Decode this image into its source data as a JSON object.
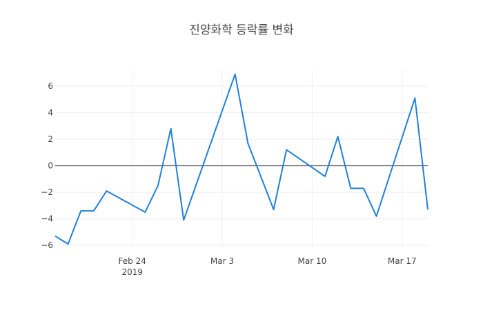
{
  "chart_data": {
    "type": "line",
    "title": "진양화학 등락률 변화",
    "xlabel": "",
    "ylabel": "",
    "x_ticks": [
      {
        "date": "2019-02-24",
        "label": "Feb 24",
        "sublabel": "2019"
      },
      {
        "date": "2019-03-03",
        "label": "Mar 3",
        "sublabel": ""
      },
      {
        "date": "2019-03-10",
        "label": "Mar 10",
        "sublabel": ""
      },
      {
        "date": "2019-03-17",
        "label": "Mar 17",
        "sublabel": ""
      }
    ],
    "y_ticks": [
      {
        "value": -6,
        "label": "−6"
      },
      {
        "value": -4,
        "label": "−4"
      },
      {
        "value": -2,
        "label": "−2"
      },
      {
        "value": 0,
        "label": "0"
      },
      {
        "value": 2,
        "label": "2"
      },
      {
        "value": 4,
        "label": "4"
      },
      {
        "value": 6,
        "label": "6"
      }
    ],
    "xlim": [
      "2019-02-18",
      "2019-03-19"
    ],
    "ylim": [
      -6.2,
      7.3
    ],
    "grid": true,
    "zeroline": true,
    "series": [
      {
        "color": "#1f7fdc",
        "points": [
          {
            "x": "2019-02-18",
            "y": -5.3
          },
          {
            "x": "2019-02-19",
            "y": -5.9
          },
          {
            "x": "2019-02-20",
            "y": -3.4
          },
          {
            "x": "2019-02-21",
            "y": -3.4
          },
          {
            "x": "2019-02-22",
            "y": -1.9
          },
          {
            "x": "2019-02-25",
            "y": -3.5
          },
          {
            "x": "2019-02-26",
            "y": -1.5
          },
          {
            "x": "2019-02-27",
            "y": 2.8
          },
          {
            "x": "2019-02-28",
            "y": -4.1
          },
          {
            "x": "2019-03-04",
            "y": 6.9
          },
          {
            "x": "2019-03-05",
            "y": 1.7
          },
          {
            "x": "2019-03-07",
            "y": -3.3
          },
          {
            "x": "2019-03-08",
            "y": 1.2
          },
          {
            "x": "2019-03-11",
            "y": -0.8
          },
          {
            "x": "2019-03-12",
            "y": 2.2
          },
          {
            "x": "2019-03-13",
            "y": -1.7
          },
          {
            "x": "2019-03-14",
            "y": -1.7
          },
          {
            "x": "2019-03-15",
            "y": -3.8
          },
          {
            "x": "2019-03-18",
            "y": 5.1
          },
          {
            "x": "2019-03-19",
            "y": -3.3
          }
        ]
      }
    ]
  }
}
